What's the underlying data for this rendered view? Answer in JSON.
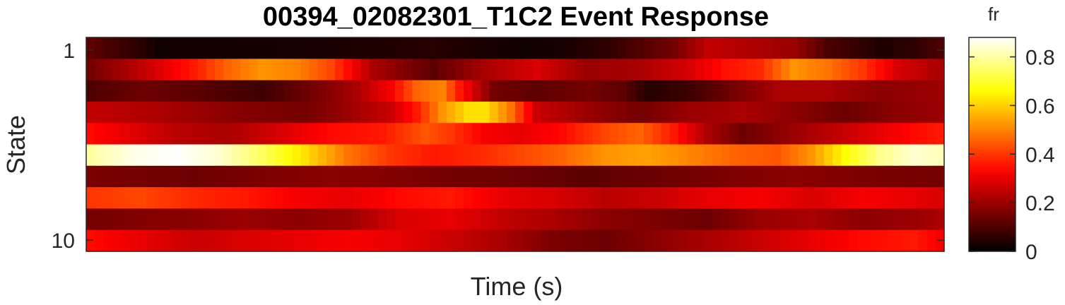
{
  "chart_data": {
    "type": "heatmap",
    "title": "00394_02082301_T1C2 Event Response",
    "xlabel": "Time (s)",
    "ylabel": "State",
    "ytick_labels": [
      "1",
      "10"
    ],
    "colorbar_label": "fr",
    "colorbar_ticks": [
      "0",
      "0.2",
      "0.4",
      "0.6",
      "0.8"
    ],
    "colorbar_tick_values": [
      0,
      0.2,
      0.4,
      0.6,
      0.8
    ],
    "clim": [
      0,
      0.88
    ],
    "colormap": "hot",
    "x_bins": 100,
    "rows": [
      {
        "state": 1,
        "keys": [
          [
            0,
            0.12
          ],
          [
            6,
            0.05
          ],
          [
            8,
            0.02
          ],
          [
            25,
            0.03
          ],
          [
            40,
            0.05
          ],
          [
            50,
            0.02
          ],
          [
            55,
            0.03
          ],
          [
            60,
            0.06
          ],
          [
            68,
            0.15
          ],
          [
            72,
            0.25
          ],
          [
            78,
            0.22
          ],
          [
            82,
            0.2
          ],
          [
            86,
            0.1
          ],
          [
            92,
            0.04
          ],
          [
            96,
            0.06
          ],
          [
            99,
            0.1
          ]
        ]
      },
      {
        "state": 2,
        "keys": [
          [
            0,
            0.15
          ],
          [
            6,
            0.25
          ],
          [
            12,
            0.36
          ],
          [
            16,
            0.46
          ],
          [
            20,
            0.52
          ],
          [
            24,
            0.5
          ],
          [
            28,
            0.42
          ],
          [
            33,
            0.22
          ],
          [
            40,
            0.12
          ],
          [
            46,
            0.22
          ],
          [
            52,
            0.28
          ],
          [
            58,
            0.2
          ],
          [
            64,
            0.22
          ],
          [
            70,
            0.28
          ],
          [
            74,
            0.35
          ],
          [
            78,
            0.38
          ],
          [
            82,
            0.52
          ],
          [
            86,
            0.48
          ],
          [
            90,
            0.4
          ],
          [
            94,
            0.28
          ],
          [
            99,
            0.22
          ]
        ]
      },
      {
        "state": 3,
        "keys": [
          [
            0,
            0.1
          ],
          [
            6,
            0.14
          ],
          [
            12,
            0.12
          ],
          [
            20,
            0.08
          ],
          [
            26,
            0.15
          ],
          [
            31,
            0.22
          ],
          [
            35,
            0.32
          ],
          [
            38,
            0.46
          ],
          [
            41,
            0.5
          ],
          [
            43,
            0.36
          ],
          [
            47,
            0.15
          ],
          [
            52,
            0.12
          ],
          [
            58,
            0.15
          ],
          [
            62,
            0.12
          ],
          [
            65,
            0.05
          ],
          [
            70,
            0.08
          ],
          [
            75,
            0.15
          ],
          [
            80,
            0.22
          ],
          [
            86,
            0.22
          ],
          [
            92,
            0.18
          ],
          [
            99,
            0.2
          ]
        ]
      },
      {
        "state": 4,
        "keys": [
          [
            0,
            0.25
          ],
          [
            6,
            0.23
          ],
          [
            12,
            0.2
          ],
          [
            18,
            0.17
          ],
          [
            25,
            0.15
          ],
          [
            30,
            0.2
          ],
          [
            35,
            0.26
          ],
          [
            38,
            0.36
          ],
          [
            41,
            0.52
          ],
          [
            44,
            0.62
          ],
          [
            46,
            0.62
          ],
          [
            49,
            0.48
          ],
          [
            52,
            0.26
          ],
          [
            58,
            0.2
          ],
          [
            64,
            0.15
          ],
          [
            70,
            0.2
          ],
          [
            76,
            0.22
          ],
          [
            82,
            0.18
          ],
          [
            88,
            0.14
          ],
          [
            94,
            0.18
          ],
          [
            99,
            0.2
          ]
        ]
      },
      {
        "state": 5,
        "keys": [
          [
            0,
            0.34
          ],
          [
            4,
            0.3
          ],
          [
            10,
            0.24
          ],
          [
            16,
            0.22
          ],
          [
            22,
            0.28
          ],
          [
            28,
            0.34
          ],
          [
            34,
            0.36
          ],
          [
            39,
            0.44
          ],
          [
            42,
            0.4
          ],
          [
            46,
            0.32
          ],
          [
            50,
            0.3
          ],
          [
            55,
            0.34
          ],
          [
            60,
            0.42
          ],
          [
            64,
            0.46
          ],
          [
            68,
            0.36
          ],
          [
            72,
            0.22
          ],
          [
            76,
            0.14
          ],
          [
            80,
            0.18
          ],
          [
            86,
            0.24
          ],
          [
            92,
            0.3
          ],
          [
            96,
            0.34
          ],
          [
            99,
            0.36
          ]
        ]
      },
      {
        "state": 6,
        "keys": [
          [
            0,
            0.8
          ],
          [
            5,
            0.86
          ],
          [
            10,
            0.88
          ],
          [
            15,
            0.84
          ],
          [
            20,
            0.74
          ],
          [
            25,
            0.62
          ],
          [
            30,
            0.48
          ],
          [
            35,
            0.4
          ],
          [
            40,
            0.36
          ],
          [
            45,
            0.38
          ],
          [
            50,
            0.42
          ],
          [
            55,
            0.46
          ],
          [
            60,
            0.52
          ],
          [
            65,
            0.54
          ],
          [
            70,
            0.5
          ],
          [
            75,
            0.46
          ],
          [
            80,
            0.44
          ],
          [
            84,
            0.52
          ],
          [
            88,
            0.66
          ],
          [
            92,
            0.78
          ],
          [
            96,
            0.84
          ],
          [
            99,
            0.82
          ]
        ]
      },
      {
        "state": 7,
        "keys": [
          [
            0,
            0.16
          ],
          [
            6,
            0.15
          ],
          [
            12,
            0.14
          ],
          [
            20,
            0.16
          ],
          [
            28,
            0.18
          ],
          [
            35,
            0.17
          ],
          [
            42,
            0.15
          ],
          [
            50,
            0.14
          ],
          [
            58,
            0.12
          ],
          [
            66,
            0.14
          ],
          [
            74,
            0.16
          ],
          [
            82,
            0.18
          ],
          [
            90,
            0.16
          ],
          [
            99,
            0.15
          ]
        ]
      },
      {
        "state": 8,
        "keys": [
          [
            0,
            0.4
          ],
          [
            6,
            0.42
          ],
          [
            12,
            0.38
          ],
          [
            18,
            0.36
          ],
          [
            24,
            0.32
          ],
          [
            30,
            0.3
          ],
          [
            36,
            0.34
          ],
          [
            42,
            0.36
          ],
          [
            48,
            0.3
          ],
          [
            54,
            0.28
          ],
          [
            60,
            0.24
          ],
          [
            66,
            0.26
          ],
          [
            72,
            0.3
          ],
          [
            78,
            0.32
          ],
          [
            84,
            0.28
          ],
          [
            90,
            0.32
          ],
          [
            96,
            0.3
          ],
          [
            99,
            0.28
          ]
        ]
      },
      {
        "state": 9,
        "keys": [
          [
            0,
            0.15
          ],
          [
            6,
            0.17
          ],
          [
            12,
            0.18
          ],
          [
            18,
            0.2
          ],
          [
            24,
            0.18
          ],
          [
            30,
            0.2
          ],
          [
            36,
            0.28
          ],
          [
            42,
            0.3
          ],
          [
            48,
            0.25
          ],
          [
            54,
            0.22
          ],
          [
            60,
            0.18
          ],
          [
            66,
            0.16
          ],
          [
            72,
            0.14
          ],
          [
            78,
            0.2
          ],
          [
            84,
            0.22
          ],
          [
            90,
            0.18
          ],
          [
            96,
            0.2
          ],
          [
            99,
            0.22
          ]
        ]
      },
      {
        "state": 10,
        "keys": [
          [
            0,
            0.34
          ],
          [
            6,
            0.3
          ],
          [
            12,
            0.26
          ],
          [
            18,
            0.28
          ],
          [
            24,
            0.3
          ],
          [
            30,
            0.32
          ],
          [
            36,
            0.3
          ],
          [
            42,
            0.26
          ],
          [
            48,
            0.22
          ],
          [
            54,
            0.16
          ],
          [
            60,
            0.14
          ],
          [
            66,
            0.18
          ],
          [
            72,
            0.22
          ],
          [
            78,
            0.26
          ],
          [
            84,
            0.3
          ],
          [
            90,
            0.34
          ],
          [
            96,
            0.36
          ],
          [
            99,
            0.32
          ]
        ]
      }
    ]
  }
}
